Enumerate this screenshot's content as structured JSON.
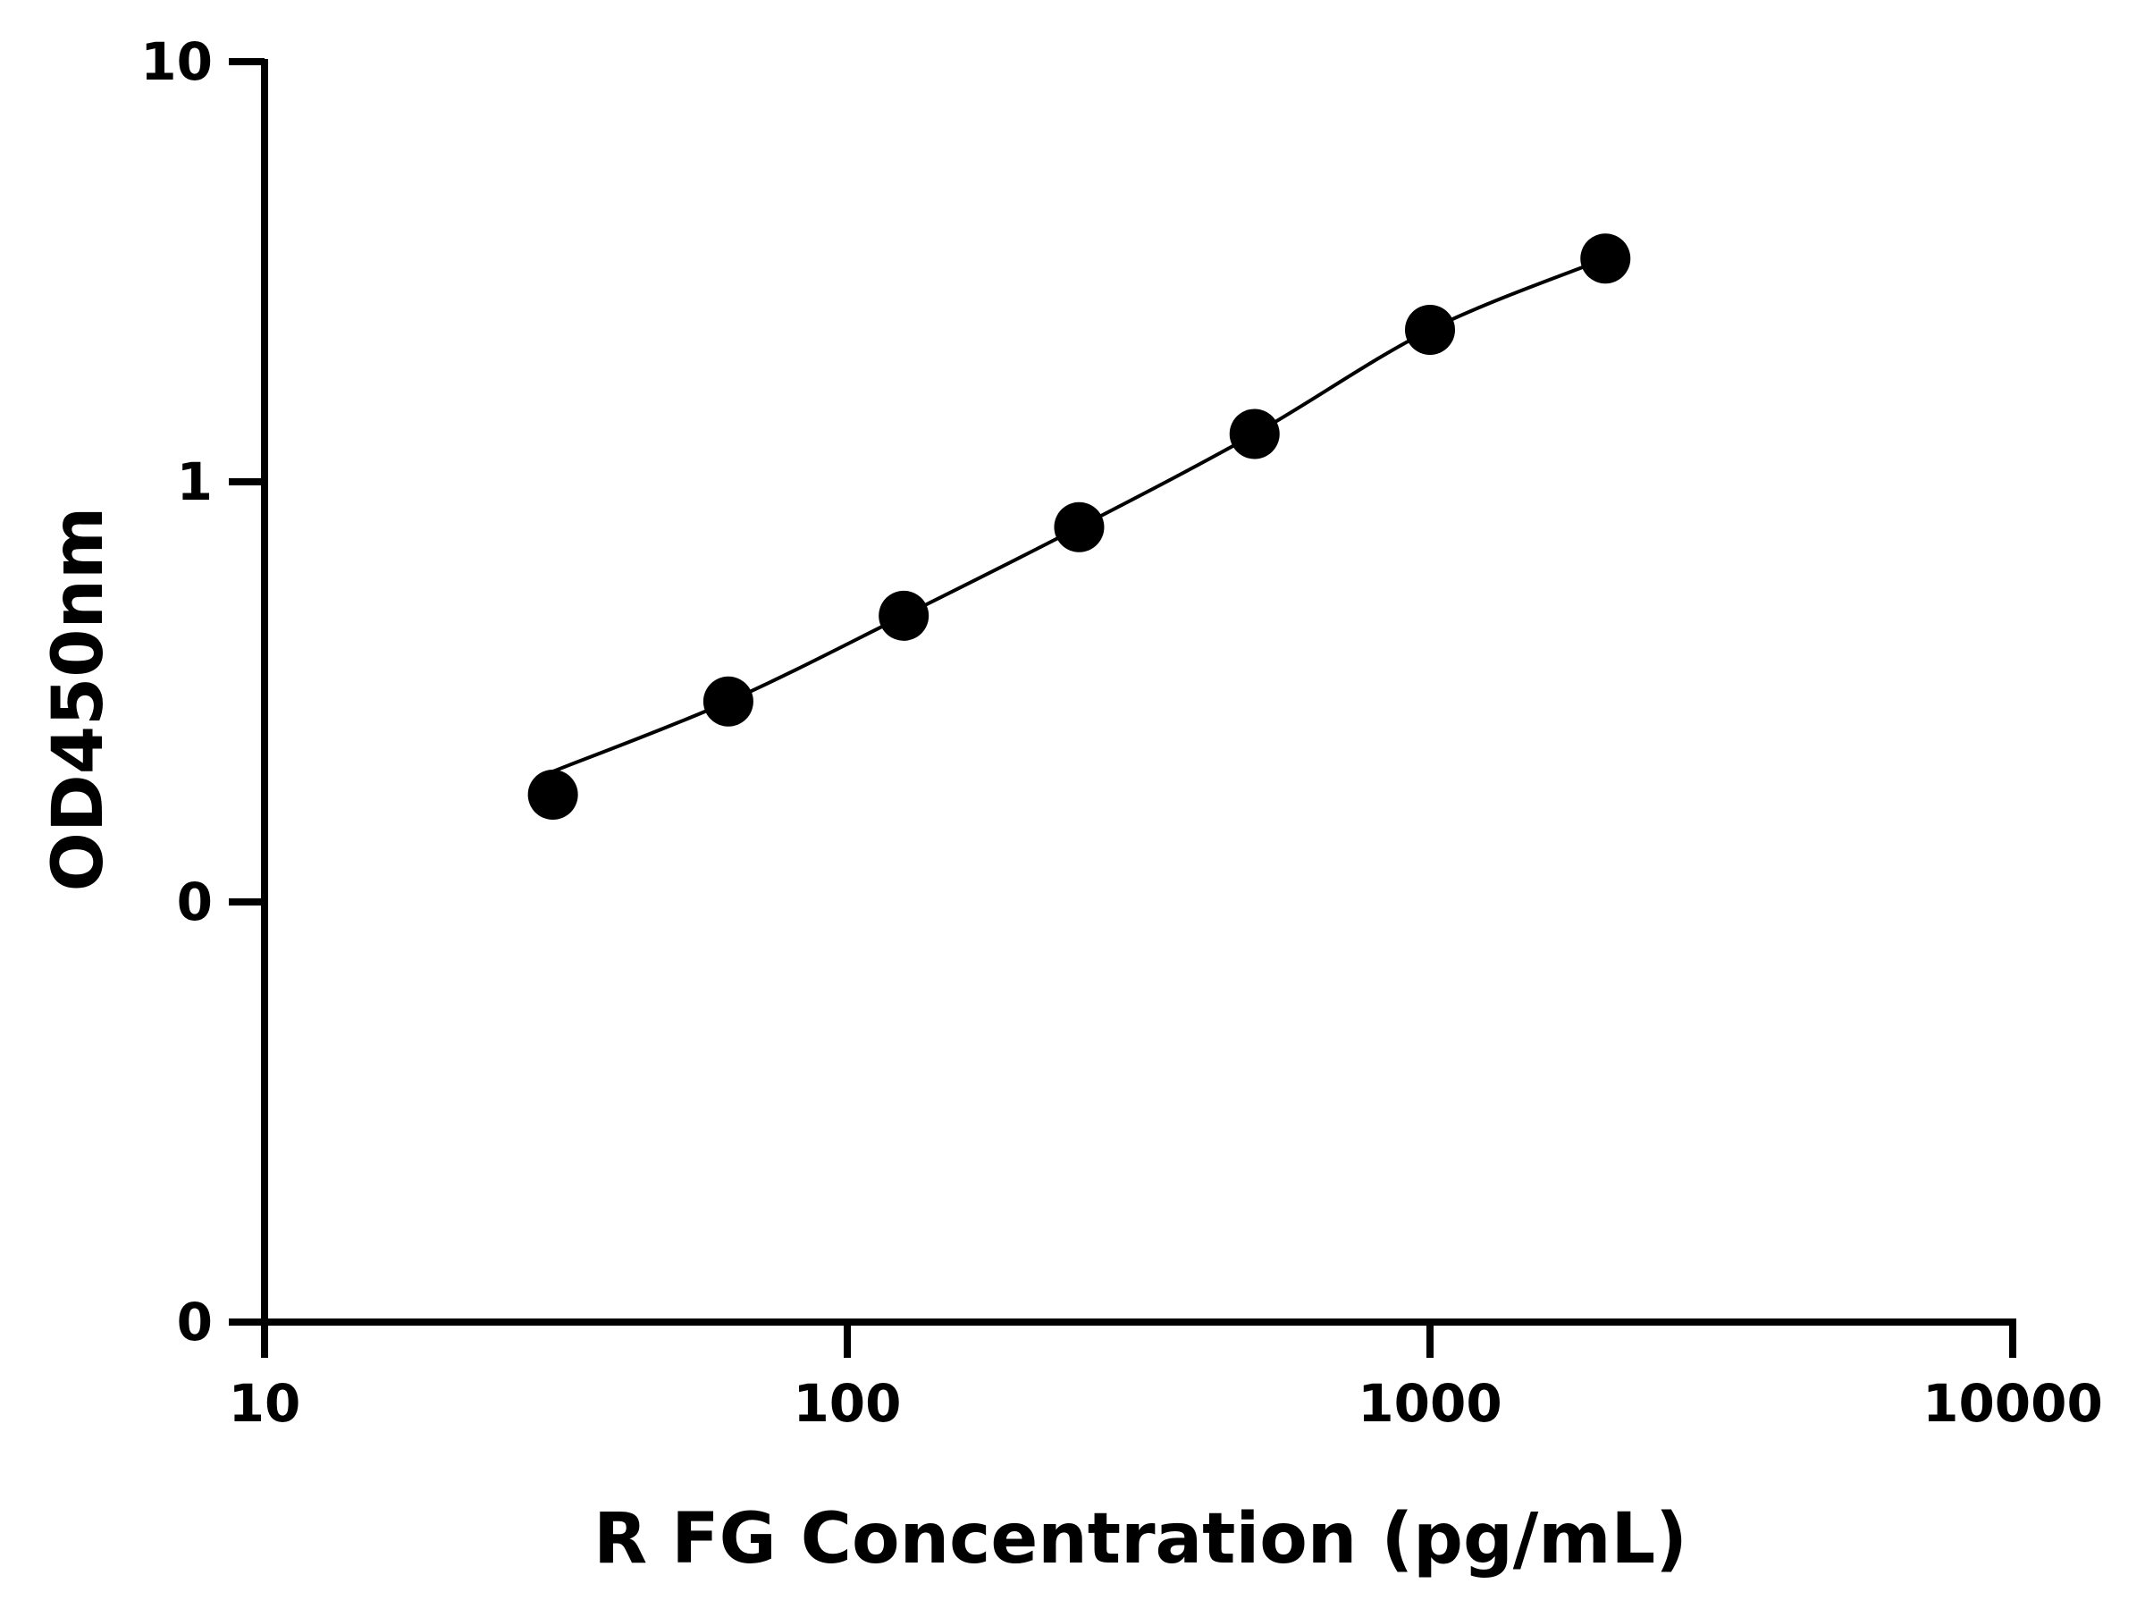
{
  "chart_data": {
    "type": "scatter",
    "title": "",
    "xlabel": "R FG Concentration (pg/mL)",
    "ylabel": "OD450nm",
    "x_scale": "log",
    "xlim": [
      10,
      10000
    ],
    "x_ticks": [
      10,
      100,
      1000,
      10000
    ],
    "x_tick_labels": [
      "10",
      "100",
      "1000",
      "10000"
    ],
    "y_tick_labels": [
      "0",
      "0",
      "1",
      "10"
    ],
    "grid": false,
    "legend": "none",
    "marker_color": "#000000",
    "line_color": "#000000",
    "series": [
      {
        "x": [
          31.25,
          62.5,
          125,
          250,
          500,
          1000,
          2000
        ],
        "y": [
          0.18,
          0.3,
          0.48,
          0.78,
          1.3,
          2.3,
          3.4
        ],
        "fit_curve": true
      }
    ]
  }
}
